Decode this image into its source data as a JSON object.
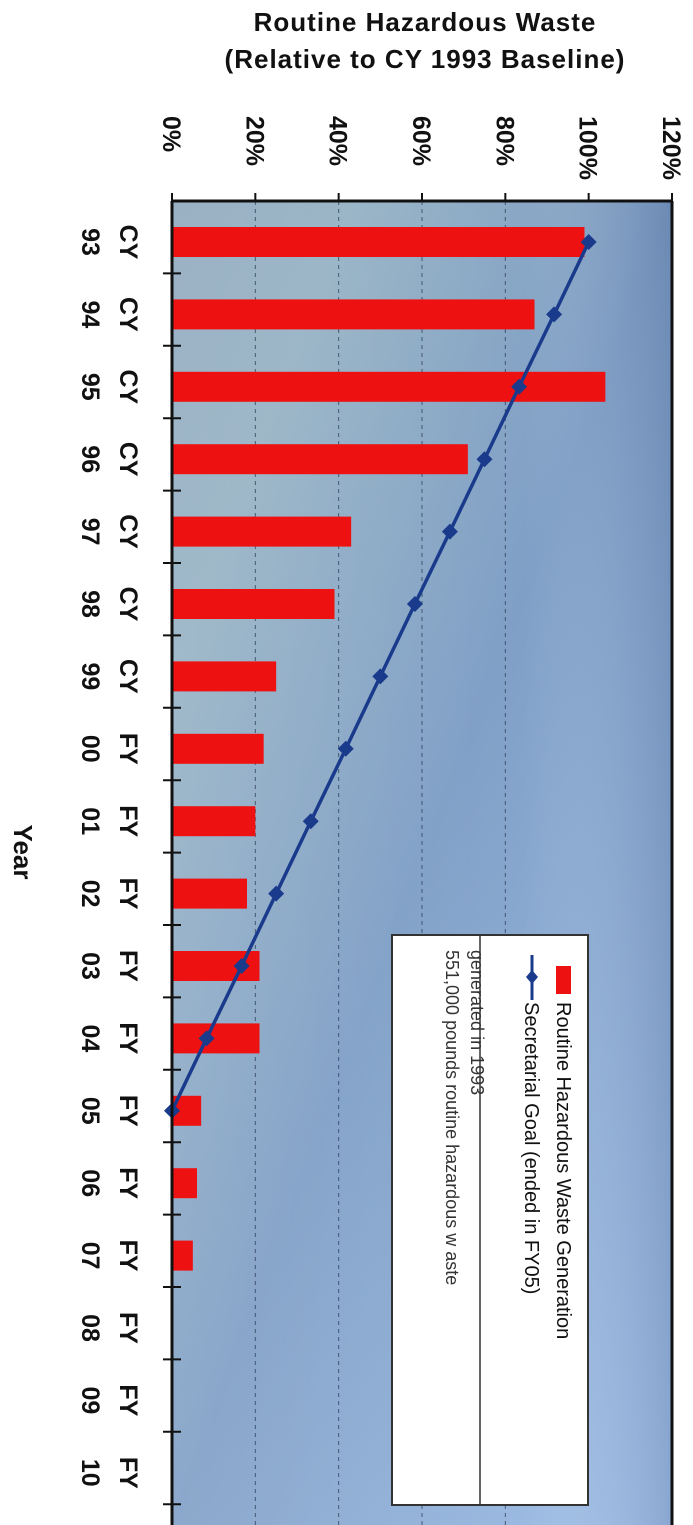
{
  "chart_data": {
    "type": "bar",
    "title": [
      "Routine Hazardous Waste",
      "(Relative to CY 1993 Baseline)"
    ],
    "xlabel": "Year",
    "ylabel": "",
    "ylim": [
      0,
      120
    ],
    "y_ticks": [
      "0%",
      "20%",
      "40%",
      "60%",
      "80%",
      "100%",
      "120%"
    ],
    "categories": [
      "CY 93",
      "CY 94",
      "CY 95",
      "CY 96",
      "CY 97",
      "CY 98",
      "CY 99",
      "FY 00",
      "FY 01",
      "FY 02",
      "FY 03",
      "FY 04",
      "FY 05",
      "FY 06",
      "FY 07",
      "FY 08",
      "FY 09",
      "FY 10"
    ],
    "series": [
      {
        "name": "Routine Hazardous Waste Generation",
        "kind": "bar",
        "color": "#ee1111",
        "values": [
          99,
          87,
          104,
          71,
          43,
          39,
          25,
          22,
          20,
          18,
          21,
          21,
          7,
          6,
          5,
          null,
          null,
          null
        ]
      },
      {
        "name": "Secretarial Goal (ended in FY05)",
        "kind": "line",
        "color": "#1a3a8c",
        "values": [
          100,
          91.7,
          83.3,
          75,
          66.7,
          58.3,
          50,
          41.7,
          33.3,
          25,
          16.7,
          8.3,
          0,
          null,
          null,
          null,
          null,
          null
        ]
      }
    ],
    "note": "551,000 pounds routine hazardous w aste generated in 1993",
    "grid": "dashed at 20% intervals",
    "legend_position": "lower-right, inside plot",
    "orientation": "image rotated 90 degrees clockwise"
  }
}
